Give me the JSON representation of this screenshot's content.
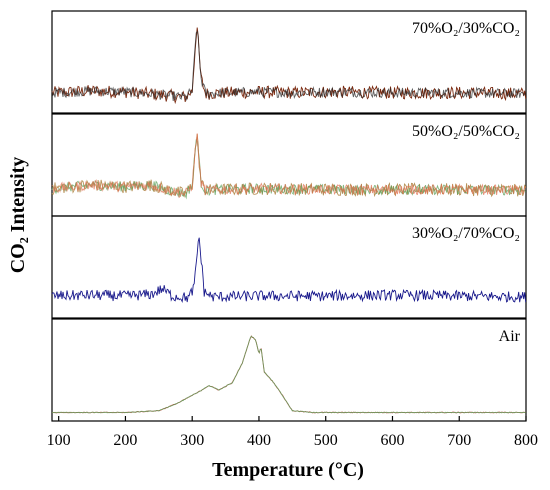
{
  "chart_data": {
    "type": "line",
    "xlabel": "Temperature (°C)",
    "ylabel": "CO₂ Intensity",
    "xlim": [
      90,
      800
    ],
    "x_ticks": [
      "100",
      "200",
      "300",
      "400",
      "500",
      "600",
      "700",
      "800"
    ],
    "grid": false,
    "panels": [
      {
        "label": "70%O₂/30%CO₂",
        "baseline": 0.18,
        "noise": 0.07,
        "ylim": [
          0,
          1
        ],
        "colors": [
          "#7a2a10",
          "#2c2c2c"
        ],
        "series": [
          {
            "x": [
              90,
              150,
              200,
              250,
              290,
              300,
              307,
              313,
              320,
              350,
              400,
              450,
              500,
              600,
              700,
              800
            ],
            "y": [
              0.18,
              0.2,
              0.19,
              0.16,
              0.13,
              0.2,
              0.95,
              0.35,
              0.17,
              0.18,
              0.19,
              0.18,
              0.19,
              0.18,
              0.18,
              0.17
            ]
          }
        ]
      },
      {
        "label": "50%O₂/50%CO₂",
        "baseline": 0.25,
        "noise": 0.07,
        "ylim": [
          0,
          1
        ],
        "colors": [
          "#b8935a",
          "#5aa05a",
          "#e07050"
        ],
        "series": [
          {
            "x": [
              90,
              150,
              200,
              240,
              260,
              290,
              300,
              307,
              313,
              320,
              350,
              400,
              500,
              600,
              700,
              800
            ],
            "y": [
              0.26,
              0.3,
              0.28,
              0.3,
              0.25,
              0.2,
              0.3,
              0.88,
              0.33,
              0.24,
              0.25,
              0.26,
              0.25,
              0.25,
              0.25,
              0.24
            ]
          }
        ]
      },
      {
        "label": "30%O₂/70%CO₂",
        "baseline": 0.2,
        "noise": 0.06,
        "ylim": [
          0,
          1
        ],
        "colors": [
          "#1a1a8c"
        ],
        "series": [
          {
            "x": [
              90,
              150,
              200,
              240,
              255,
              270,
              295,
              303,
              310,
              318,
              330,
              400,
              500,
              600,
              700,
              800
            ],
            "y": [
              0.2,
              0.21,
              0.2,
              0.22,
              0.28,
              0.2,
              0.18,
              0.3,
              0.88,
              0.25,
              0.19,
              0.2,
              0.2,
              0.21,
              0.2,
              0.19
            ]
          }
        ]
      },
      {
        "label": "Air",
        "baseline": 0.05,
        "noise": 0.005,
        "ylim": [
          0,
          1
        ],
        "colors": [
          "#c0645a",
          "#5aa05a"
        ],
        "series": [
          {
            "x": [
              90,
              200,
              250,
              280,
              310,
              325,
              340,
              360,
              375,
              388,
              395,
              400,
              403,
              408,
              420,
              430,
              450,
              480,
              800
            ],
            "y": [
              0.05,
              0.05,
              0.07,
              0.16,
              0.28,
              0.35,
              0.3,
              0.38,
              0.6,
              0.9,
              0.86,
              0.7,
              0.78,
              0.5,
              0.4,
              0.3,
              0.07,
              0.05,
              0.05
            ]
          }
        ]
      }
    ]
  }
}
